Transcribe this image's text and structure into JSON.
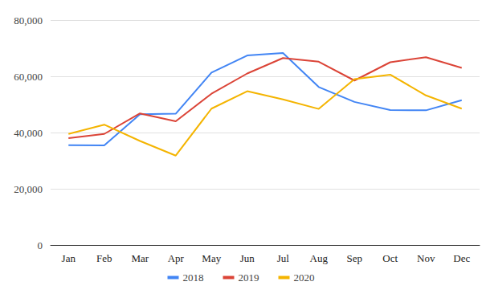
{
  "chart_data": {
    "type": "line",
    "categories": [
      "Jan",
      "Feb",
      "Mar",
      "Apr",
      "May",
      "Jun",
      "Jul",
      "Aug",
      "Sep",
      "Oct",
      "Nov",
      "Dec"
    ],
    "series": [
      {
        "name": "2018",
        "color": "#4285f4",
        "values": [
          35500,
          35400,
          46500,
          46700,
          61300,
          67400,
          68300,
          56200,
          50900,
          48000,
          47900,
          51500
        ]
      },
      {
        "name": "2019",
        "color": "#db4437",
        "values": [
          38000,
          39500,
          46800,
          44000,
          53800,
          61000,
          66500,
          65200,
          58500,
          65000,
          66800,
          63000
        ]
      },
      {
        "name": "2020",
        "color": "#f4b400",
        "values": [
          39500,
          42800,
          37000,
          31800,
          48500,
          54700,
          51800,
          48400,
          59000,
          60600,
          53200,
          48500
        ]
      }
    ],
    "ylim": [
      0,
      80000
    ],
    "yticks": [
      0,
      {
        "value": 20000,
        "label": "20,000"
      },
      {
        "value": 40000,
        "label": "40,000"
      },
      {
        "value": 60000,
        "label": "60,000"
      },
      {
        "value": 80000,
        "label": "80,000"
      }
    ],
    "grid": true,
    "legend": "bottom"
  }
}
